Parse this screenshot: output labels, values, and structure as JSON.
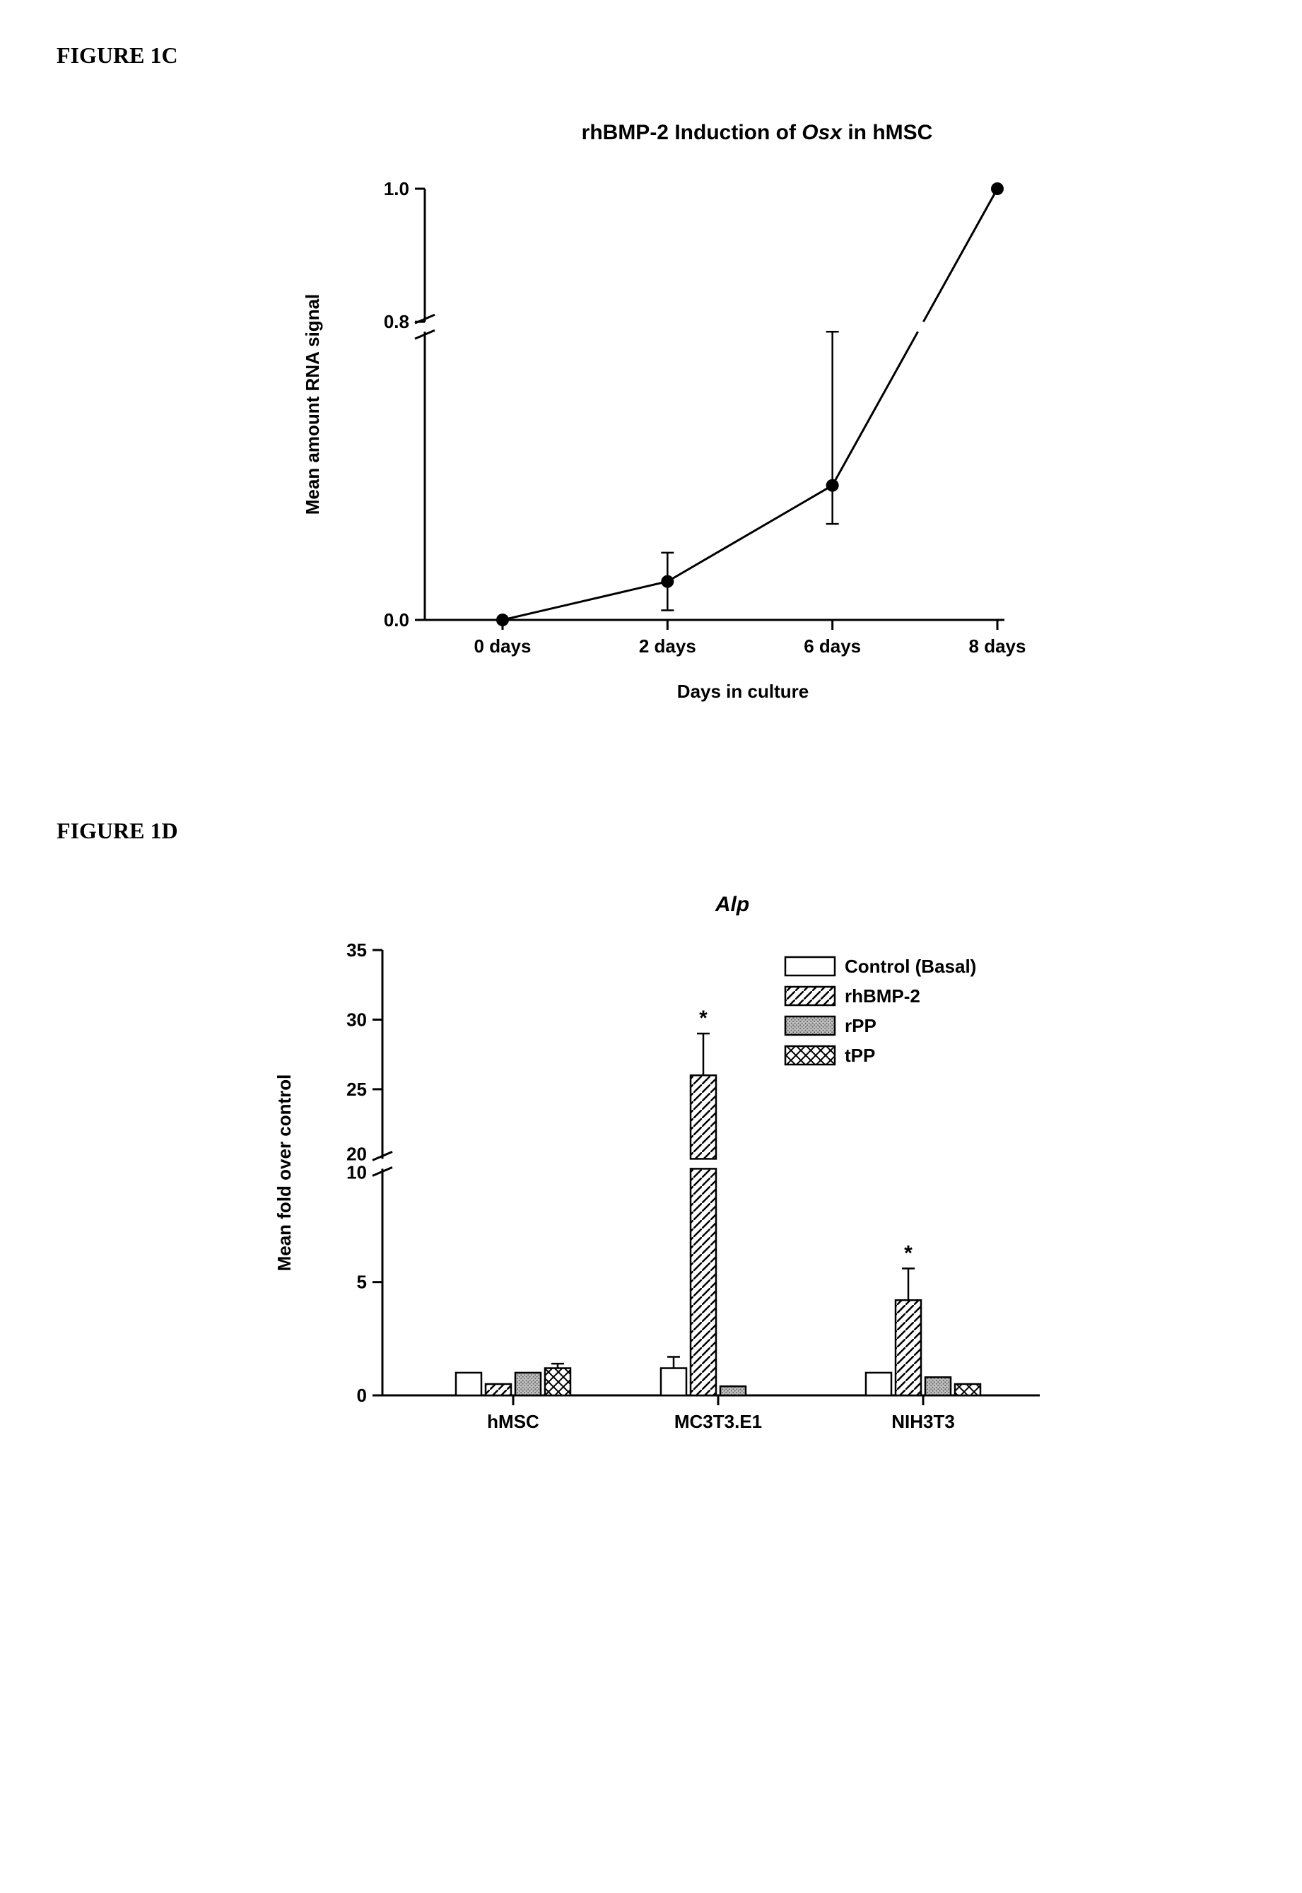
{
  "figure1c": {
    "label": "FIGURE 1C",
    "type": "line",
    "title": "rhBMP-2 Induction of Osx in hMSC",
    "title_fontstyle": "bold-italic-mixed",
    "ylabel": "Mean amount RNA signal",
    "xlabel": "Days in culture",
    "x_categories": [
      "0 days",
      "2 days",
      "6 days",
      "8 days"
    ],
    "yticks": [
      "0.0",
      "0.8",
      "1.0"
    ],
    "break_between": [
      0.1,
      0.8
    ],
    "points": [
      {
        "x": 0,
        "y": 0.0,
        "err": 0.0
      },
      {
        "x": 1,
        "y": 0.02,
        "err": 0.015
      },
      {
        "x": 2,
        "y": 0.07,
        "err": 0.02,
        "err_upper": 0.08
      },
      {
        "x": 3,
        "y": 1.0,
        "err": 0.0
      }
    ],
    "line_color": "#000000",
    "marker_color": "#000000",
    "marker_shape": "circle",
    "marker_size": 9,
    "line_width": 3,
    "background_color": "#ffffff",
    "axis_color": "#000000",
    "axis_width": 3,
    "font_family": "Arial, Helvetica, sans-serif",
    "label_fontsize": 26,
    "tick_fontsize": 26,
    "title_fontsize": 30
  },
  "figure1d": {
    "label": "FIGURE 1D",
    "type": "grouped-bar",
    "title": "Alp",
    "title_fontstyle": "bold-italic",
    "ylabel": "Mean fold over control",
    "x_categories": [
      "hMSC",
      "MC3T3.E1",
      "NIH3T3"
    ],
    "yticks_lower": [
      0,
      5
    ],
    "yticks_upper": [
      20,
      25,
      30,
      35
    ],
    "break_between": [
      10,
      20
    ],
    "ymax_lower": 10,
    "ymin_upper": 20,
    "ymax_upper": 35,
    "series": [
      {
        "name": "Control (Basal)",
        "pattern": "empty"
      },
      {
        "name": "rhBMP-2",
        "pattern": "diag-right"
      },
      {
        "name": "rPP",
        "pattern": "dots"
      },
      {
        "name": "tPP",
        "pattern": "cross"
      }
    ],
    "data": {
      "hMSC": [
        {
          "v": 1.0,
          "e": 0
        },
        {
          "v": 0.5,
          "e": 0
        },
        {
          "v": 1.0,
          "e": 0
        },
        {
          "v": 1.2,
          "e": 0.2
        }
      ],
      "MC3T3.E1": [
        {
          "v": 1.2,
          "e": 0.5
        },
        {
          "v": 26.0,
          "e": 3.0,
          "star": true
        },
        {
          "v": 0.4,
          "e": 0
        },
        {
          "v": 0,
          "e": 0
        }
      ],
      "NIH3T3": [
        {
          "v": 1.0,
          "e": 0
        },
        {
          "v": 4.2,
          "e": 1.4,
          "star": true
        },
        {
          "v": 0.8,
          "e": 0
        },
        {
          "v": 0.5,
          "e": 0
        }
      ]
    },
    "bar_outline_color": "#000000",
    "bar_outline_width": 2.5,
    "background_color": "#ffffff",
    "axis_color": "#000000",
    "axis_width": 3,
    "font_family": "Arial, Helvetica, sans-serif",
    "label_fontsize": 26,
    "tick_fontsize": 26,
    "title_fontsize": 30,
    "legend_fontsize": 26,
    "star_symbol": "*"
  }
}
